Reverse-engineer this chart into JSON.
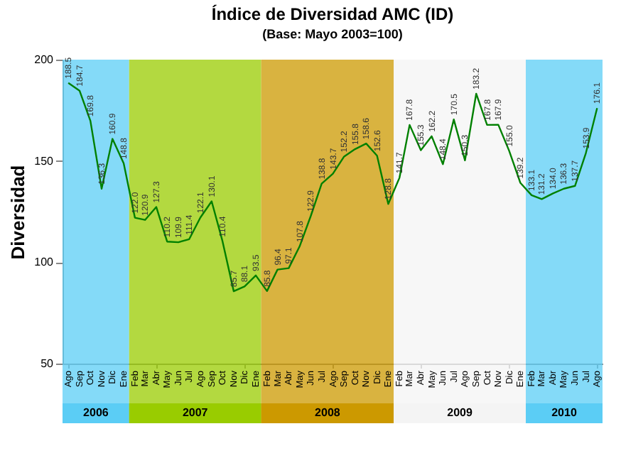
{
  "chart_data": {
    "type": "line",
    "title": "Índice de Diversidad AMC (ID)",
    "subtitle": "(Base: Mayo 2003=100)",
    "ylabel": "Diversidad",
    "x": [
      "2006-08",
      "2006-09",
      "2006-10",
      "2006-11",
      "2006-12",
      "2007-01",
      "2007-02",
      "2007-03",
      "2007-04",
      "2007-05",
      "2007-06",
      "2007-07",
      "2007-08",
      "2007-09",
      "2007-10",
      "2007-11",
      "2007-12",
      "2008-01",
      "2008-02",
      "2008-03",
      "2008-04",
      "2008-05",
      "2008-06",
      "2008-07",
      "2008-08",
      "2008-09",
      "2008-10",
      "2008-11",
      "2008-12",
      "2009-01",
      "2009-02",
      "2009-03",
      "2009-04",
      "2009-05",
      "2009-06",
      "2009-07",
      "2009-08",
      "2009-09",
      "2009-10",
      "2009-11",
      "2009-12",
      "2010-01",
      "2010-02",
      "2010-03",
      "2010-04",
      "2010-05",
      "2010-06",
      "2010-07",
      "2010-08"
    ],
    "xlim": [
      "2006-07-16",
      "2010-08-16"
    ],
    "xticks": [
      {
        "value": "2006-08",
        "label": "Ago"
      },
      {
        "value": "2006-09",
        "label": "Sep"
      },
      {
        "value": "2006-10",
        "label": "Oct"
      },
      {
        "value": "2006-11",
        "label": "Nov"
      },
      {
        "value": "2006-12",
        "label": "Dic"
      },
      {
        "value": "2007-01",
        "label": "Ene"
      },
      {
        "value": "2007-02",
        "label": "Feb"
      },
      {
        "value": "2007-03",
        "label": "Mar"
      },
      {
        "value": "2007-04",
        "label": "Abr"
      },
      {
        "value": "2007-05",
        "label": "May"
      },
      {
        "value": "2007-06",
        "label": "Jun"
      },
      {
        "value": "2007-07",
        "label": "Jul"
      },
      {
        "value": "2007-08",
        "label": "Ago"
      },
      {
        "value": "2007-09",
        "label": "Sep"
      },
      {
        "value": "2007-10",
        "label": "Oct"
      },
      {
        "value": "2007-11",
        "label": "Nov"
      },
      {
        "value": "2007-12",
        "label": "Dic"
      },
      {
        "value": "2008-01",
        "label": "Ene"
      },
      {
        "value": "2008-02",
        "label": "Feb"
      },
      {
        "value": "2008-03",
        "label": "Mar"
      },
      {
        "value": "2008-04",
        "label": "Abr"
      },
      {
        "value": "2008-05",
        "label": "May"
      },
      {
        "value": "2008-06",
        "label": "Jun"
      },
      {
        "value": "2008-07",
        "label": "Jul"
      },
      {
        "value": "2008-08",
        "label": "Ago"
      },
      {
        "value": "2008-09",
        "label": "Sep"
      },
      {
        "value": "2008-10",
        "label": "Oct"
      },
      {
        "value": "2008-11",
        "label": "Nov"
      },
      {
        "value": "2008-12",
        "label": "Dic"
      },
      {
        "value": "2009-01",
        "label": "Ene"
      },
      {
        "value": "2009-02",
        "label": "Feb"
      },
      {
        "value": "2009-03",
        "label": "Mar"
      },
      {
        "value": "2009-04",
        "label": "Abr"
      },
      {
        "value": "2009-05",
        "label": "May"
      },
      {
        "value": "2009-06",
        "label": "Jun"
      },
      {
        "value": "2009-07",
        "label": "Jul"
      },
      {
        "value": "2009-08",
        "label": "Ago"
      },
      {
        "value": "2009-09",
        "label": "Sep"
      },
      {
        "value": "2009-10",
        "label": "Oct"
      },
      {
        "value": "2009-11",
        "label": "Nov"
      },
      {
        "value": "2009-12",
        "label": "Dic"
      },
      {
        "value": "2010-01",
        "label": "Ene"
      },
      {
        "value": "2010-02",
        "label": "Feb"
      },
      {
        "value": "2010-03",
        "label": "Mar"
      },
      {
        "value": "2010-04",
        "label": "Abr"
      },
      {
        "value": "2010-05",
        "label": "May"
      },
      {
        "value": "2010-06",
        "label": "Jun"
      },
      {
        "value": "2010-07",
        "label": "Jul"
      },
      {
        "value": "2010-08",
        "label": "Ago"
      }
    ],
    "series": [
      {
        "color": "#008000",
        "values": [
          188.5,
          184.7,
          169.8,
          136.3,
          160.9,
          148.8,
          122.0,
          120.9,
          127.3,
          110.2,
          109.9,
          111.4,
          122.1,
          130.1,
          110.4,
          85.7,
          88.1,
          93.5,
          85.8,
          96.4,
          97.1,
          107.8,
          122.9,
          138.8,
          143.7,
          152.2,
          155.8,
          158.6,
          152.6,
          128.8,
          141.7,
          167.8,
          155.3,
          162.2,
          148.4,
          170.5,
          150.3,
          183.2,
          167.8,
          167.9,
          155.0,
          139.2,
          133.1,
          131.2,
          134.0,
          136.3,
          137.7,
          153.9,
          176.1
        ],
        "value_labels": [
          "188.5",
          "184.7",
          "169.8",
          "136.3",
          "160.9",
          "148.8",
          "122.0",
          "120.9",
          "127.3",
          "110.2",
          "109.9",
          "111.4",
          "122.1",
          "130.1",
          "110.4",
          "85.7",
          "88.1",
          "93.5",
          "85.8",
          "96.4",
          "97.1",
          "107.8",
          "122.9",
          "138.8",
          "143.7",
          "152.2",
          "155.8",
          "158.6",
          "152.6",
          "128.8",
          "141.7",
          "167.8",
          "155.3",
          "162.2",
          "148.4",
          "170.5",
          "150.3",
          "183.2",
          "167.8",
          "167.9",
          "155.0",
          "139.2",
          "133.1",
          "131.2",
          "134.0",
          "136.3",
          "137.7",
          "153.9",
          "176.1"
        ]
      }
    ],
    "ylim": [
      50,
      200
    ],
    "yticks": [
      50,
      100,
      150,
      200
    ],
    "marker": "none",
    "bands": [
      {
        "axis": "x",
        "from": "2006-07-16",
        "to": "2007-01-16",
        "label": "2006",
        "color": "#5bcdf5"
      },
      {
        "axis": "x",
        "from": "2007-01-16",
        "to": "2008-01-16",
        "label": "2007",
        "color": "#99cc00"
      },
      {
        "axis": "x",
        "from": "2008-01-16",
        "to": "2009-01-16",
        "label": "2008",
        "color": "#cc9900"
      },
      {
        "axis": "x",
        "from": "2009-01-16",
        "to": "2010-01-16",
        "label": "2009",
        "color": "#f4f4f4"
      },
      {
        "axis": "x",
        "from": "2010-01-16",
        "to": "2010-08-16",
        "label": "2010",
        "color": "#5bcdf5"
      }
    ]
  }
}
